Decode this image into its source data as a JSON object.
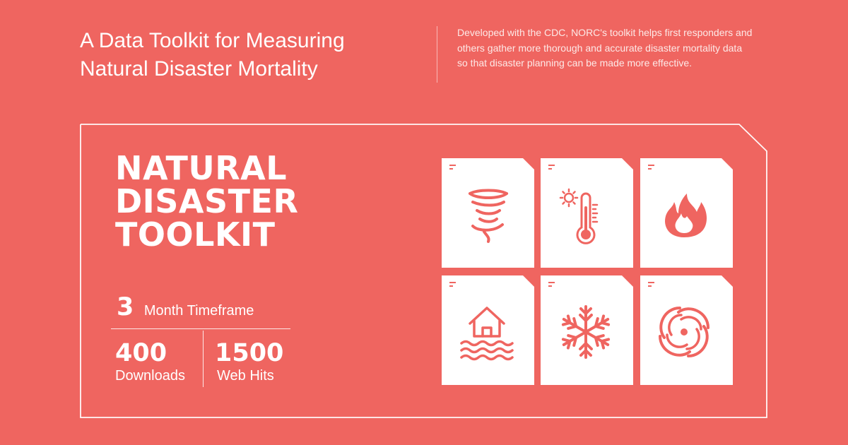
{
  "header": {
    "headline_line1": "A Data Toolkit for Measuring",
    "headline_line2": "Natural Disaster Mortality",
    "description": "Developed with the CDC, NORC's toolkit helps first responders and others gather more thorough and accurate disaster mortality data so that disaster planning can be made more effective."
  },
  "toolkit": {
    "title_line1": "NATURAL",
    "title_line2": "DISASTER",
    "title_line3": "TOOLKIT"
  },
  "stats": {
    "timeframe_value": "3",
    "timeframe_label": "Month Timeframe",
    "downloads_value": "400",
    "downloads_label": "Downloads",
    "webhits_value": "1500",
    "webhits_label": "Web Hits"
  },
  "cards": [
    {
      "icon": "tornado-icon"
    },
    {
      "icon": "thermometer-sun-icon"
    },
    {
      "icon": "fire-icon"
    },
    {
      "icon": "flood-house-icon"
    },
    {
      "icon": "snowflake-icon"
    },
    {
      "icon": "hurricane-icon"
    }
  ],
  "colors": {
    "background": "#ef6560",
    "card": "#ffffff",
    "icon": "#ef6560",
    "text": "#ffffff"
  }
}
